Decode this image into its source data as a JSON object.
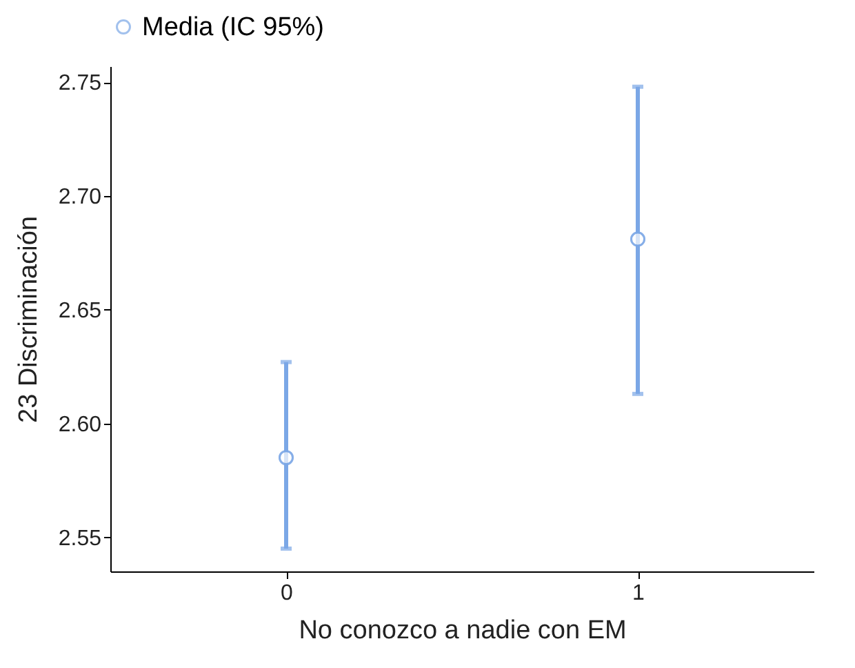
{
  "chart_data": {
    "type": "scatter",
    "xlabel": "No conozco a nadie con EM",
    "ylabel": "23 Discriminación",
    "categories": [
      "0",
      "1"
    ],
    "series": [
      {
        "name": "Media (IC 95%)",
        "color": "#7ba7e6",
        "values": [
          2.585,
          2.681
        ],
        "errors": [
          [
            2.545,
            2.627
          ],
          [
            2.613,
            2.748
          ]
        ]
      }
    ],
    "ylim": [
      2.535,
      2.757
    ],
    "yticks": [
      2.55,
      {
        "value": 2.6,
        "label": "2.60"
      },
      2.65,
      {
        "value": 2.7,
        "label": "2.70"
      },
      2.75
    ],
    "grid": false,
    "legend": "top",
    "marker": "circle"
  }
}
